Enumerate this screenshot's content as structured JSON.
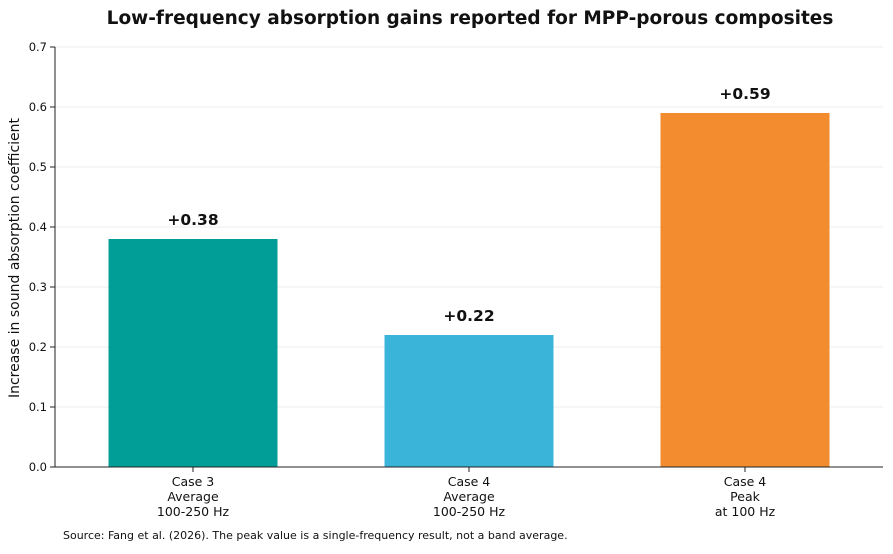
{
  "chart_data": {
    "type": "bar",
    "title": "Low-frequency absorption gains reported for MPP-porous composites",
    "ylabel": "Increase in sound absorption coefficient",
    "xlabel": "",
    "ylim": [
      0,
      0.7
    ],
    "yticks": [
      0.0,
      0.1,
      0.2,
      0.3,
      0.4,
      0.5,
      0.6,
      0.7
    ],
    "ytick_labels": [
      "0.0",
      "0.1",
      "0.2",
      "0.3",
      "0.4",
      "0.5",
      "0.6",
      "0.7"
    ],
    "grid": "horizontal",
    "categories": [
      [
        "Case 3",
        "Average",
        "100-250 Hz"
      ],
      [
        "Case 4",
        "Average",
        "100-250 Hz"
      ],
      [
        "Case 4",
        "Peak",
        "at 100 Hz"
      ]
    ],
    "values": [
      0.38,
      0.22,
      0.59
    ],
    "data_labels": [
      "+0.38",
      "+0.22",
      "+0.59"
    ],
    "colors": [
      "#009E96",
      "#3BB4D9",
      "#F28C2E"
    ],
    "source_note": "Source: Fang et al. (2026). The peak value is a single-frequency result, not a band average."
  }
}
